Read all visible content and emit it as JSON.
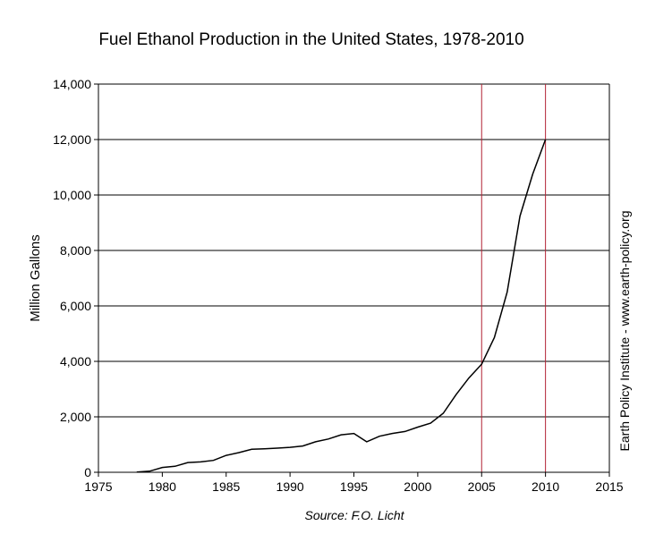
{
  "chart_data": {
    "type": "line",
    "title": "Fuel Ethanol Production in the United States, 1978-2010",
    "ylabel": "Million Gallons",
    "xlabel": "",
    "source": "Source: F.O. Licht",
    "side_note": "Earth Policy Institute - www.earth-policy.org",
    "xlim": [
      1975,
      2015
    ],
    "ylim": [
      0,
      14000
    ],
    "xticks": [
      1975,
      1980,
      1985,
      1990,
      1995,
      2000,
      2005,
      2010,
      2015
    ],
    "yticks": [
      0,
      2000,
      4000,
      6000,
      8000,
      10000,
      12000,
      14000
    ],
    "ytick_labels": [
      "0",
      "2,000",
      "4,000",
      "6,000",
      "8,000",
      "10,000",
      "12,000",
      "14,000"
    ],
    "grid": "horizontal",
    "reference_lines_x": [
      2005,
      2010
    ],
    "colors": {
      "line": "#000000",
      "reference": "#b22234",
      "grid": "#000000"
    },
    "x": [
      1978,
      1979,
      1980,
      1981,
      1982,
      1983,
      1984,
      1985,
      1986,
      1987,
      1988,
      1989,
      1990,
      1991,
      1992,
      1993,
      1994,
      1995,
      1996,
      1997,
      1998,
      1999,
      2000,
      2001,
      2002,
      2003,
      2004,
      2005,
      2006,
      2007,
      2008,
      2009,
      2010
    ],
    "values": [
      10,
      40,
      175,
      215,
      350,
      375,
      430,
      610,
      710,
      830,
      845,
      870,
      900,
      950,
      1100,
      1200,
      1350,
      1400,
      1100,
      1300,
      1400,
      1470,
      1630,
      1770,
      2130,
      2800,
      3400,
      3900,
      4860,
      6500,
      9240,
      10750,
      12000
    ]
  }
}
